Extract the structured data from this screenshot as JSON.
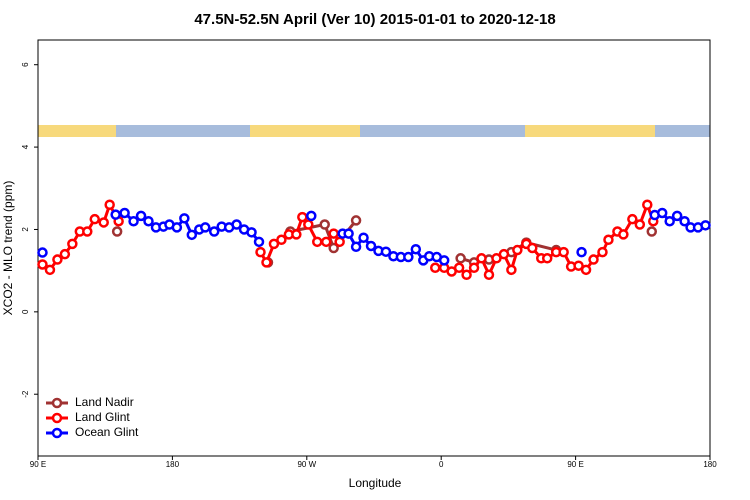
{
  "chart_data": {
    "type": "line",
    "title": "47.5N-52.5N April (Ver 10)   2015-01-01 to 2020-12-18",
    "x_label": "Longitude",
    "y_label": "XCO2 - MLO trend (ppm)",
    "xlim": [
      90,
      540
    ],
    "ylim": [
      -3.5,
      6.6
    ],
    "xticks": [
      {
        "value": 90,
        "label": "90 E"
      },
      180,
      {
        "value": 270,
        "label": "90 W"
      },
      {
        "value": 360,
        "label": "0"
      },
      {
        "value": 450,
        "label": "90 E"
      },
      180
    ],
    "yticks": [
      -2,
      0,
      2,
      4,
      6
    ],
    "legend": "bottomleft",
    "series": [
      {
        "name": "Land Nadir",
        "color": "#a03232",
        "x": [
          143,
          null,
          244,
          null,
          259,
          282,
          288,
          303,
          null,
          373,
          382,
          392,
          407,
          417,
          437,
          null,
          501
        ],
        "values": [
          1.95,
          null,
          1.2,
          null,
          1.95,
          2.12,
          1.55,
          2.22,
          null,
          1.3,
          1.2,
          1.27,
          1.45,
          1.68,
          1.5,
          null,
          1.95
        ]
      },
      {
        "name": "Land Glint",
        "color": "#ff0000",
        "x": [
          93,
          98,
          103,
          108,
          113,
          118,
          123,
          128,
          134,
          138,
          144,
          null,
          239,
          243,
          248,
          253,
          258,
          263,
          267,
          271,
          277,
          283,
          288,
          292,
          null,
          356,
          362,
          367,
          372,
          377,
          382,
          387,
          392,
          397,
          402,
          407,
          411,
          417,
          421,
          427,
          431,
          437,
          442,
          447,
          452,
          457,
          462,
          468,
          472,
          478,
          482,
          488,
          493,
          498,
          502
        ],
        "values": [
          1.15,
          1.02,
          1.27,
          1.4,
          1.65,
          1.95,
          1.95,
          2.25,
          2.17,
          2.6,
          2.2,
          null,
          1.45,
          1.2,
          1.65,
          1.75,
          1.88,
          1.88,
          2.3,
          2.12,
          1.7,
          1.7,
          1.9,
          1.7,
          null,
          1.07,
          1.07,
          0.98,
          1.07,
          0.9,
          1.07,
          1.3,
          0.9,
          1.3,
          1.4,
          1.02,
          1.5,
          1.65,
          1.55,
          1.3,
          1.3,
          1.45,
          1.45,
          1.1,
          1.12,
          1.02,
          1.27,
          1.45,
          1.75,
          1.95,
          1.88,
          2.25,
          2.12,
          2.6,
          2.2
        ]
      },
      {
        "name": "Ocean Glint",
        "color": "#0000ff",
        "x": [
          93,
          null,
          142,
          148,
          154,
          159,
          164,
          169,
          174,
          178,
          183,
          188,
          193,
          198,
          202,
          208,
          213,
          218,
          223,
          228,
          233,
          238,
          null,
          273,
          null,
          294,
          298,
          303,
          308,
          313,
          318,
          323,
          328,
          333,
          338,
          343,
          348,
          352,
          357,
          362,
          null,
          454,
          null,
          503,
          508,
          513,
          518,
          523,
          527,
          532,
          537
        ],
        "values": [
          1.44,
          null,
          2.36,
          2.4,
          2.2,
          2.33,
          2.2,
          2.05,
          2.07,
          2.12,
          2.05,
          2.27,
          1.87,
          2.0,
          2.05,
          1.95,
          2.07,
          2.05,
          2.12,
          2.0,
          1.93,
          1.7,
          null,
          2.33,
          null,
          1.9,
          1.9,
          1.58,
          1.8,
          1.6,
          1.48,
          1.46,
          1.35,
          1.33,
          1.33,
          1.52,
          1.25,
          1.35,
          1.33,
          1.25,
          null,
          1.45,
          null,
          2.35,
          2.4,
          2.2,
          2.33,
          2.2,
          2.05,
          2.05,
          2.1
        ]
      }
    ]
  }
}
